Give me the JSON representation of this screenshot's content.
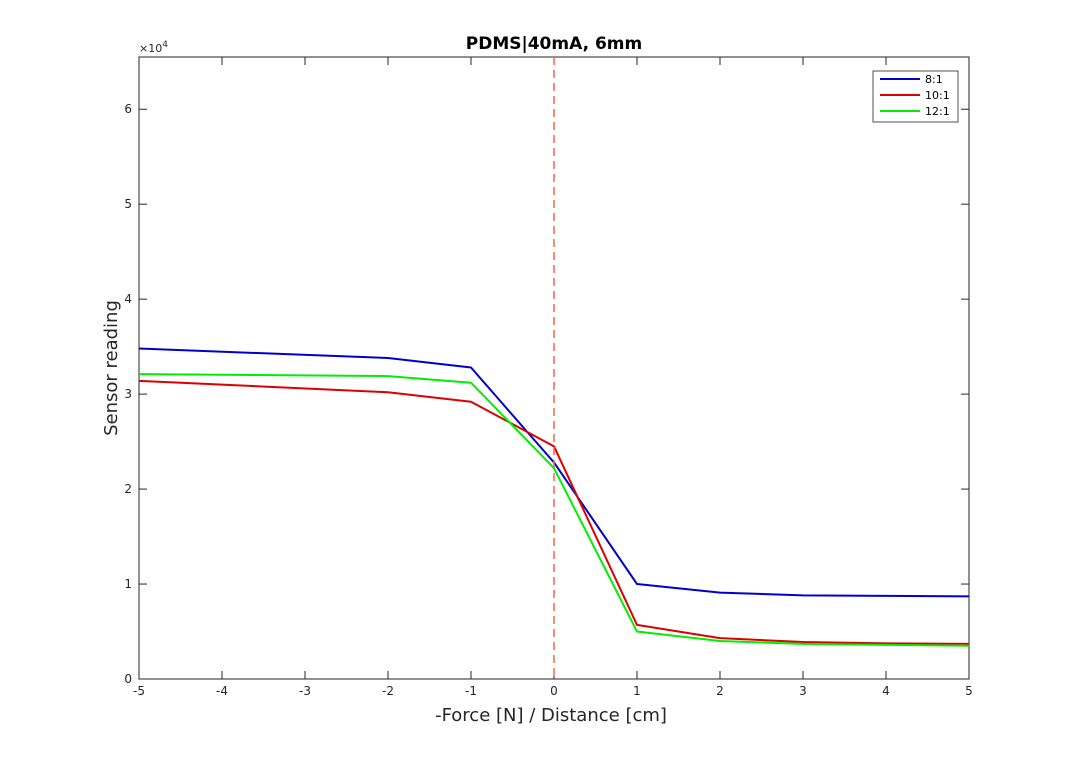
{
  "chart_data": {
    "type": "line",
    "title": "PDMS|40mA, 6mm",
    "xlabel": "-Force [N] / Distance [cm]",
    "ylabel": "Sensor reading",
    "y_exponent_label": "×10^4",
    "y_exponent_base": "×10",
    "y_exponent_power": "4",
    "xlim": [
      -5,
      5
    ],
    "ylim": [
      0,
      65500
    ],
    "x_ticks": [
      "-5",
      "-4",
      "-3",
      "-2",
      "-1",
      "0",
      "1",
      "2",
      "3",
      "4",
      "5"
    ],
    "y_ticks": [
      "0",
      "1",
      "2",
      "3",
      "4",
      "5",
      "6"
    ],
    "y_tick_values": [
      0,
      10000,
      20000,
      30000,
      40000,
      50000,
      60000
    ],
    "grid": false,
    "legend_position": "top-right",
    "reference_line": {
      "x": 0,
      "style": "dashed",
      "color": "#ff6347"
    },
    "x": [
      -5,
      -2,
      -1,
      0,
      1,
      2,
      3,
      4,
      5
    ],
    "series": [
      {
        "name": "8:1",
        "color": "#0000cc",
        "values": [
          34800,
          33800,
          32800,
          22800,
          10000,
          9100,
          8800,
          8750,
          8700
        ]
      },
      {
        "name": "10:1",
        "color": "#dd0000",
        "values": [
          31400,
          30200,
          29200,
          24500,
          5700,
          4300,
          3900,
          3750,
          3700
        ]
      },
      {
        "name": "12:1",
        "color": "#00ee00",
        "values": [
          32100,
          31900,
          31200,
          22200,
          5000,
          4000,
          3700,
          3600,
          3500
        ]
      }
    ]
  }
}
